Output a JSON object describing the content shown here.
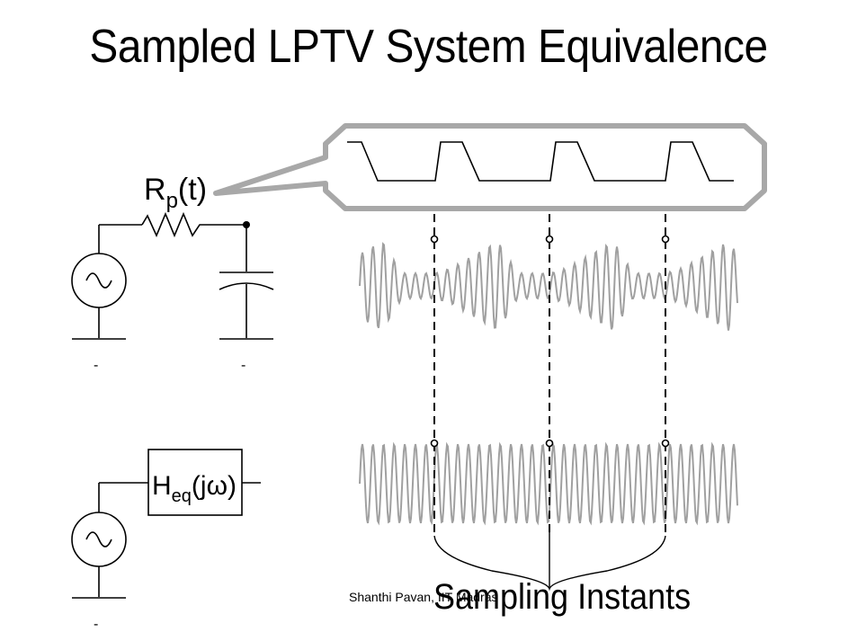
{
  "slide": {
    "title": "Sampled LPTV System Equivalence",
    "footer": "Shanthi Pavan, IIT Madras",
    "annotation": "Sampling Instants"
  },
  "circuit_top": {
    "resistor_label_main": "R",
    "resistor_label_sub": "p",
    "resistor_label_tail": "(t)",
    "source_symbol": "~",
    "ground_mark": "-"
  },
  "circuit_bottom": {
    "block_label_main": "H",
    "block_label_sub": "eq",
    "block_label_tail": "(jω)",
    "source_symbol": "~",
    "ground_mark": "-"
  },
  "colors": {
    "line": "#000000",
    "waveform": "#a0a0a0",
    "callout": "#a8a8a8"
  }
}
